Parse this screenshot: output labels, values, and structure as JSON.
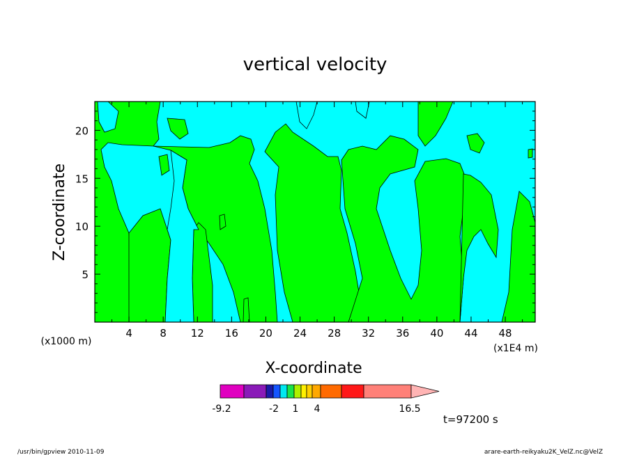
{
  "chart_data": {
    "type": "heatmap",
    "title": "vertical velocity",
    "xlabel": "X-coordinate",
    "ylabel": "Z-coordinate",
    "x_unit": "(x1E4 m)",
    "y_unit": "(x1000 m)",
    "xlim": [
      0,
      51.5
    ],
    "ylim": [
      0,
      23
    ],
    "x_ticks": [
      "4",
      "8",
      "12",
      "16",
      "20",
      "24",
      "28",
      "32",
      "36",
      "40",
      "44",
      "48"
    ],
    "y_ticks": [
      "5",
      "10",
      "15",
      "20"
    ],
    "colorbar": {
      "labels": [
        "-9.2",
        "-2",
        "1",
        "4",
        "16.5"
      ],
      "colors": [
        "#e000c0",
        "#8a1ab8",
        "#1a1aa8",
        "#1455ff",
        "#00e8f0",
        "#19e44a",
        "#aef000",
        "#fff000",
        "#ffd000",
        "#ffa800",
        "#ff6a00",
        "#ff1818",
        "#ff8078",
        "#ffb4b4"
      ]
    },
    "colors": {
      "negative": "#00ffff",
      "positive": "#00ff00",
      "line": "#000000"
    },
    "time_label": "t=97200 s"
  },
  "footer": {
    "left": "/usr/bin/gpview  2010-11-09",
    "right": "arare-earth-reikyaku2K_VelZ.nc@VelZ"
  }
}
